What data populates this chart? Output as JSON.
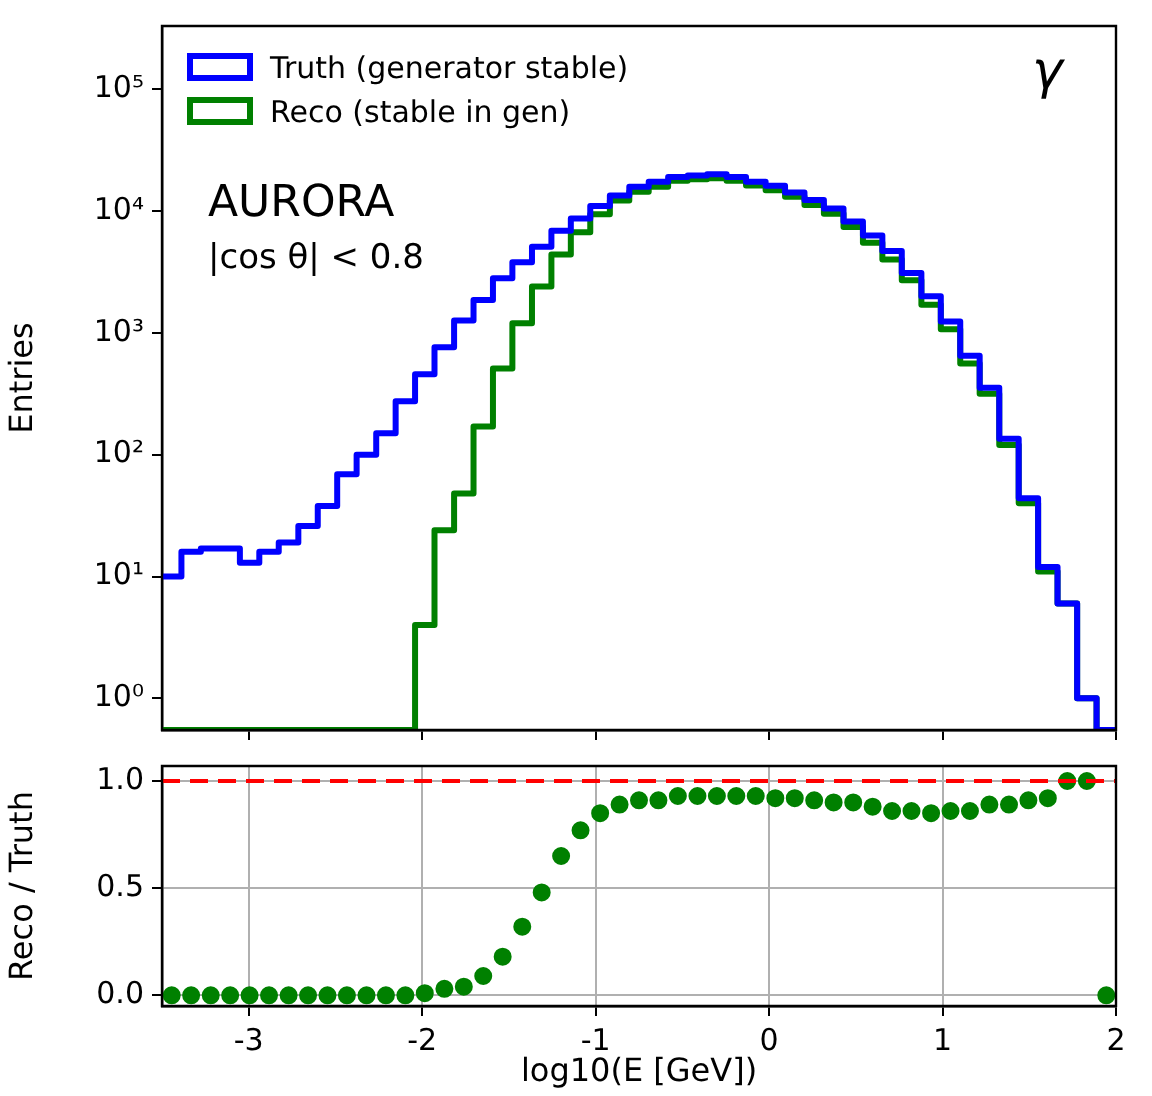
{
  "chart_data": [
    {
      "type": "histogram",
      "ylabel": "Entries",
      "log": "y",
      "legend": "top left",
      "tick_labels": "y",
      "grid": false,
      "bins": [
        -3.5,
        -3.388,
        -3.276,
        -3.163,
        -3.051,
        -2.939,
        -2.827,
        -2.714,
        -2.602,
        -2.49,
        -2.378,
        -2.265,
        -2.153,
        -2.041,
        -1.929,
        -1.816,
        -1.704,
        -1.592,
        -1.48,
        -1.367,
        -1.255,
        -1.143,
        -1.031,
        -0.918,
        -0.806,
        -0.694,
        -0.582,
        -0.469,
        -0.357,
        -0.245,
        -0.133,
        -0.02,
        0.092,
        0.204,
        0.316,
        0.429,
        0.541,
        0.653,
        0.765,
        0.878,
        0.99,
        1.102,
        1.214,
        1.327,
        1.439,
        1.551,
        1.663,
        1.776,
        1.888,
        2.0
      ],
      "series": [
        {
          "name": "Truth (generator stable)",
          "color": "#0000ff",
          "values": [
            10,
            16,
            17,
            17,
            13,
            16,
            19,
            26,
            38,
            69,
            100,
            150,
            275,
            457,
            760,
            1260,
            1860,
            2800,
            3800,
            5100,
            6900,
            8700,
            11000,
            13400,
            15800,
            17400,
            19000,
            19600,
            20000,
            19000,
            17400,
            16100,
            14200,
            12300,
            10500,
            8200,
            6300,
            4700,
            3100,
            2000,
            1240,
            650,
            355,
            135,
            44,
            12,
            6,
            1,
            null
          ]
        },
        {
          "name": "Reco (stable in gen)",
          "color": "#008000",
          "values": [
            null,
            null,
            null,
            null,
            null,
            null,
            null,
            null,
            null,
            null,
            null,
            null,
            null,
            4,
            24,
            48,
            170,
            510,
            1200,
            2400,
            4400,
            6700,
            9400,
            12200,
            14400,
            15800,
            17700,
            18200,
            18600,
            17700,
            16200,
            14800,
            13100,
            11200,
            9500,
            7400,
            5500,
            4000,
            2700,
            1700,
            1070,
            560,
            316,
            120,
            40,
            11,
            6,
            1,
            null
          ]
        }
      ],
      "xlim": [
        -3.5,
        2
      ],
      "xticks": [
        -3,
        -2,
        -1,
        0,
        1,
        2
      ],
      "ylim": [
        0.55,
        330000
      ],
      "yticks": [
        {
          "value": 1,
          "label": "10⁰"
        },
        {
          "value": 10,
          "label": "10¹"
        },
        {
          "value": 100,
          "label": "10²"
        },
        {
          "value": 1000,
          "label": "10³"
        },
        {
          "value": 10000,
          "label": "10⁴"
        },
        {
          "value": 100000,
          "label": "10⁵"
        }
      ],
      "annotations": [
        "AURORA",
        "|cos θ| < 0.8",
        "γ"
      ]
    },
    {
      "type": "scatter",
      "xlabel": "log10(E [GeV])",
      "ylabel": "Reco / Truth",
      "grid": true,
      "marker": "circle",
      "x": [
        -3.444,
        -3.332,
        -3.219,
        -3.107,
        -2.995,
        -2.883,
        -2.77,
        -2.658,
        -2.546,
        -2.434,
        -2.321,
        -2.209,
        -2.097,
        -1.985,
        -1.872,
        -1.76,
        -1.648,
        -1.536,
        -1.423,
        -1.311,
        -1.199,
        -1.087,
        -0.974,
        -0.862,
        -0.75,
        -0.638,
        -0.526,
        -0.413,
        -0.301,
        -0.189,
        -0.077,
        0.036,
        0.148,
        0.26,
        0.372,
        0.485,
        0.597,
        0.709,
        0.821,
        0.934,
        1.046,
        1.158,
        1.27,
        1.383,
        1.495,
        1.607,
        1.719,
        1.832,
        1.944
      ],
      "series": [
        {
          "color": "#008000",
          "values": [
            0,
            0,
            0,
            0,
            0,
            0,
            0,
            0,
            0,
            0,
            0,
            0,
            0,
            0.01,
            0.03,
            0.04,
            0.09,
            0.18,
            0.32,
            0.48,
            0.65,
            0.77,
            0.85,
            0.89,
            0.91,
            0.91,
            0.93,
            0.93,
            0.93,
            0.93,
            0.93,
            0.92,
            0.92,
            0.91,
            0.9,
            0.9,
            0.88,
            0.86,
            0.86,
            0.85,
            0.86,
            0.86,
            0.89,
            0.89,
            0.91,
            0.92,
            1.0,
            1.0,
            0
          ]
        }
      ],
      "xlim": [
        -3.5,
        2
      ],
      "xticks": [
        -3,
        -2,
        -1,
        0,
        1,
        2
      ],
      "ylim": [
        -0.05,
        1.07
      ],
      "yticks": [
        {
          "value": 0,
          "label": "0.0"
        },
        {
          "value": 0.5,
          "label": "0.5"
        },
        {
          "value": 1,
          "label": "1.0"
        }
      ],
      "ref_lines": [
        {
          "axis": "y",
          "value": 1,
          "color": "#ff0000",
          "line_style": "dashed"
        }
      ]
    }
  ]
}
